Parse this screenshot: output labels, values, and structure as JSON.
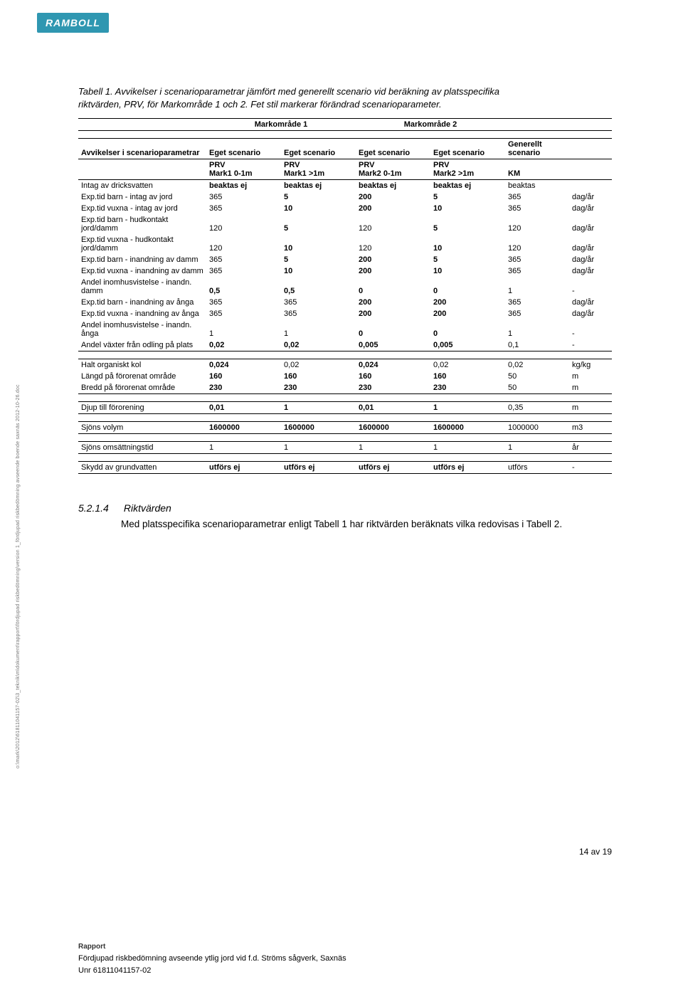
{
  "logo": "RAMBOLL",
  "caption": "Tabell 1. Avvikelser i scenarioparametrar jämfört med generellt scenario vid beräkning av platsspecifika riktvärden, PRV, för Markområde 1 och 2. Fet stil markerar förändrad scenarioparameter.",
  "table": {
    "area_headers": [
      "Markområde 1",
      "",
      "Markområde 2",
      ""
    ],
    "row1": [
      "Avvikelser i scenarioparametrar",
      "Eget scenario",
      "Eget scenario",
      "Eget scenario",
      "Eget scenario",
      "Generellt scenario",
      ""
    ],
    "row2": [
      "",
      "PRV\nMark1 0-1m",
      "PRV\nMark1 >1m",
      "PRV\nMark2 0-1m",
      "PRV\nMark2 >1m",
      "KM",
      ""
    ],
    "groups": [
      {
        "rows": [
          {
            "label": "Intag av dricksvatten",
            "cells": [
              "beaktas ej",
              "beaktas ej",
              "beaktas ej",
              "beaktas ej",
              "beaktas",
              ""
            ],
            "bold": [
              0,
              1,
              2,
              3
            ]
          },
          {
            "label": "Exp.tid barn - intag av jord",
            "cells": [
              "365",
              "5",
              "200",
              "5",
              "365",
              "dag/år"
            ],
            "bold": [
              1,
              2,
              3
            ]
          },
          {
            "label": "Exp.tid vuxna - intag av jord",
            "cells": [
              "365",
              "10",
              "200",
              "10",
              "365",
              "dag/år"
            ],
            "bold": [
              1,
              2,
              3
            ]
          },
          {
            "label": "Exp.tid barn - hudkontakt jord/damm",
            "cells": [
              "120",
              "5",
              "120",
              "5",
              "120",
              "dag/år"
            ],
            "bold": [
              1,
              3
            ]
          },
          {
            "label": "Exp.tid vuxna - hudkontakt jord/damm",
            "cells": [
              "120",
              "10",
              "120",
              "10",
              "120",
              "dag/år"
            ],
            "bold": [
              1,
              3
            ]
          },
          {
            "label": "Exp.tid barn - inandning av damm",
            "cells": [
              "365",
              "5",
              "200",
              "5",
              "365",
              "dag/år"
            ],
            "bold": [
              1,
              2,
              3
            ]
          },
          {
            "label": "Exp.tid vuxna - inandning av damm",
            "cells": [
              "365",
              "10",
              "200",
              "10",
              "365",
              "dag/år"
            ],
            "bold": [
              1,
              2,
              3
            ]
          },
          {
            "label": "Andel inomhusvistelse - inandn. damm",
            "cells": [
              "0,5",
              "0,5",
              "0",
              "0",
              "1",
              "-"
            ],
            "bold": [
              0,
              1,
              2,
              3
            ]
          },
          {
            "label": "Exp.tid barn - inandning av ånga",
            "cells": [
              "365",
              "365",
              "200",
              "200",
              "365",
              "dag/år"
            ],
            "bold": [
              2,
              3
            ]
          },
          {
            "label": "Exp.tid vuxna - inandning av ånga",
            "cells": [
              "365",
              "365",
              "200",
              "200",
              "365",
              "dag/år"
            ],
            "bold": [
              2,
              3
            ]
          },
          {
            "label": "Andel inomhusvistelse - inandn. ånga",
            "cells": [
              "1",
              "1",
              "0",
              "0",
              "1",
              "-"
            ],
            "bold": [
              2,
              3
            ]
          },
          {
            "label": "Andel växter från odling på plats",
            "cells": [
              "0,02",
              "0,02",
              "0,005",
              "0,005",
              "0,1",
              "-"
            ],
            "bold": [
              0,
              1,
              2,
              3
            ]
          }
        ]
      },
      {
        "rows": [
          {
            "label": "Halt organiskt kol",
            "cells": [
              "0,024",
              "0,02",
              "0,024",
              "0,02",
              "0,02",
              "kg/kg"
            ],
            "bold": [
              0,
              2
            ]
          },
          {
            "label": "Längd på förorenat område",
            "cells": [
              "160",
              "160",
              "160",
              "160",
              "50",
              "m"
            ],
            "bold": [
              0,
              1,
              2,
              3
            ]
          },
          {
            "label": "Bredd på förorenat område",
            "cells": [
              "230",
              "230",
              "230",
              "230",
              "50",
              "m"
            ],
            "bold": [
              0,
              1,
              2,
              3
            ]
          }
        ]
      },
      {
        "rows": [
          {
            "label": "Djup till förorening",
            "cells": [
              "0,01",
              "1",
              "0,01",
              "1",
              "0,35",
              "m"
            ],
            "bold": [
              0,
              1,
              2,
              3
            ]
          }
        ]
      },
      {
        "rows": [
          {
            "label": "Sjöns volym",
            "cells": [
              "1600000",
              "1600000",
              "1600000",
              "1600000",
              "1000000",
              "m3"
            ],
            "bold": [
              0,
              1,
              2,
              3
            ]
          }
        ]
      },
      {
        "rows": [
          {
            "label": "Sjöns omsättningstid",
            "cells": [
              "1",
              "1",
              "1",
              "1",
              "1",
              "år"
            ],
            "bold": []
          }
        ]
      },
      {
        "rows": [
          {
            "label": "Skydd av grundvatten",
            "cells": [
              "utförs ej",
              "utförs ej",
              "utförs ej",
              "utförs ej",
              "utförs",
              "-"
            ],
            "bold": [
              0,
              1,
              2,
              3
            ]
          }
        ]
      }
    ]
  },
  "section": {
    "num": "5.2.1.4",
    "title": "Riktvärden",
    "body": "Med platsspecifika scenarioparametrar enligt Tabell 1 har riktvärden beräknats vilka redovisas i Tabell 2."
  },
  "footer": {
    "rapport": "Rapport",
    "line1": "Fördjupad riskbedömning avseende ytlig jord vid f.d. Ströms sågverk, Saxnäs",
    "line2": "Unr 61811041157-02"
  },
  "sidetext": "o:\\mark\\2012\\61811041157-02\\3_teknik\\m\\dokument\\rapport\\fördjupad riskbedömning\\version 1_fördjupad riskbedömning avseende boende saxnäs 2012-10-26.doc",
  "pagenum": "14 av 19"
}
